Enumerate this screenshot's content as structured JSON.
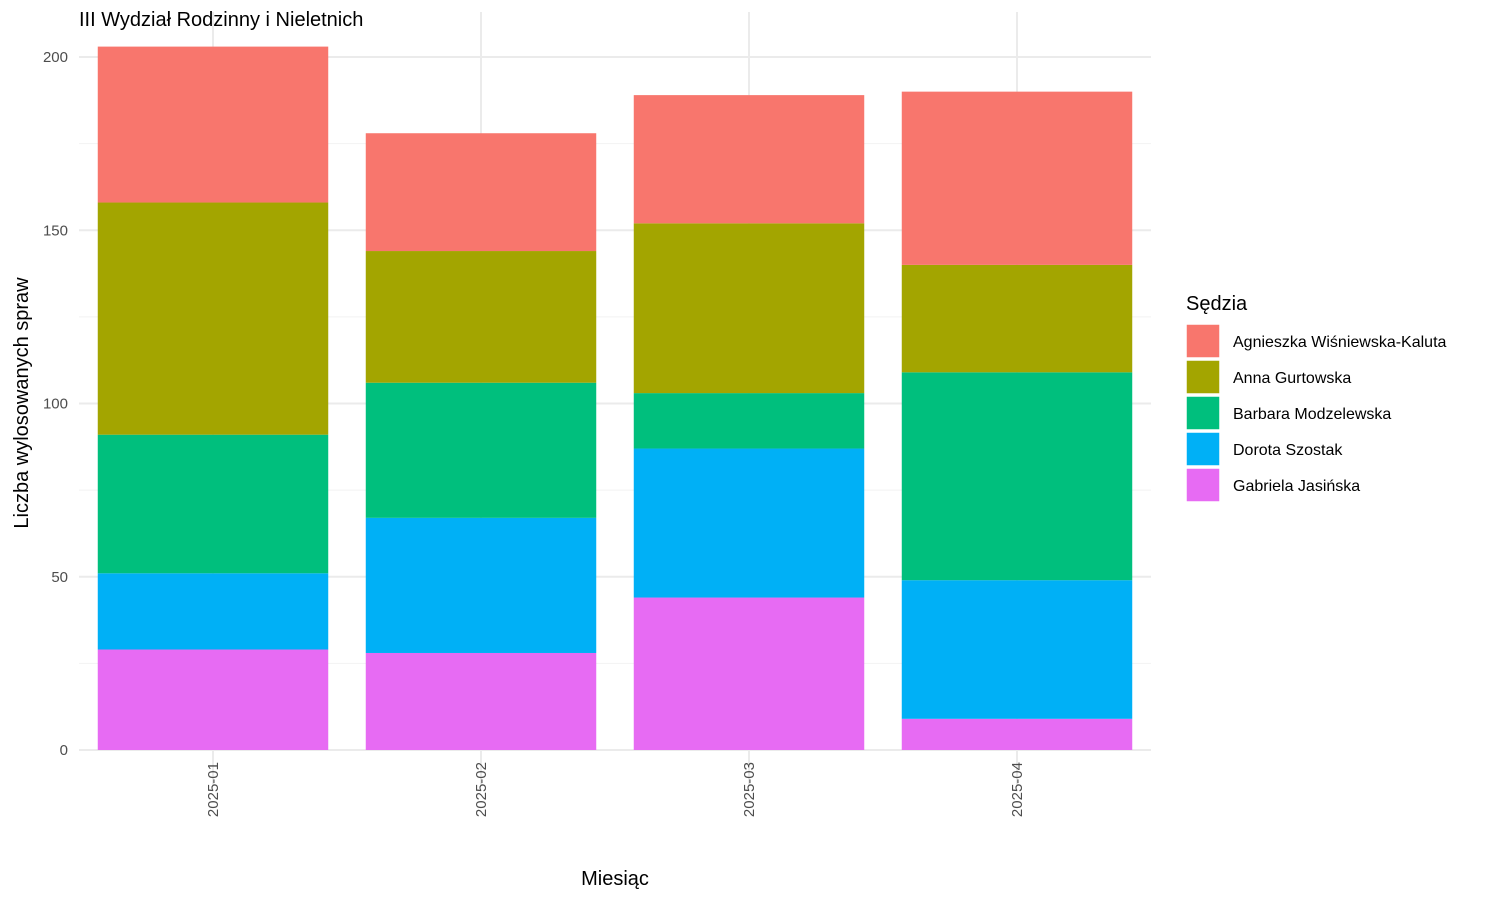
{
  "chart_data": {
    "type": "bar",
    "stacked": true,
    "title": "III Wydział Rodzinny i Nieletnich",
    "xlabel": "Miesiąc",
    "ylabel": "Liczba wylosowanych spraw",
    "ylim": [
      0,
      210
    ],
    "yticks": [
      0,
      50,
      100,
      150,
      200
    ],
    "grid": true,
    "legend": {
      "title": "Sędzia",
      "position": "right"
    },
    "categories": [
      "2025-01",
      "2025-02",
      "2025-03",
      "2025-04"
    ],
    "series": [
      {
        "name": "Agnieszka Wiśniewska-Kaluta",
        "color": "#F8766D",
        "values": [
          45,
          34,
          37,
          50
        ]
      },
      {
        "name": "Anna Gurtowska",
        "color": "#A3A500",
        "values": [
          67,
          38,
          49,
          31
        ]
      },
      {
        "name": "Barbara Modzelewska",
        "color": "#00BF7D",
        "values": [
          40,
          39,
          16,
          60
        ]
      },
      {
        "name": "Dorota Szostak",
        "color": "#00B0F6",
        "values": [
          22,
          39,
          43,
          40
        ]
      },
      {
        "name": "Gabriela Jasińska",
        "color": "#E76BF3",
        "values": [
          29,
          28,
          44,
          9
        ]
      }
    ]
  }
}
